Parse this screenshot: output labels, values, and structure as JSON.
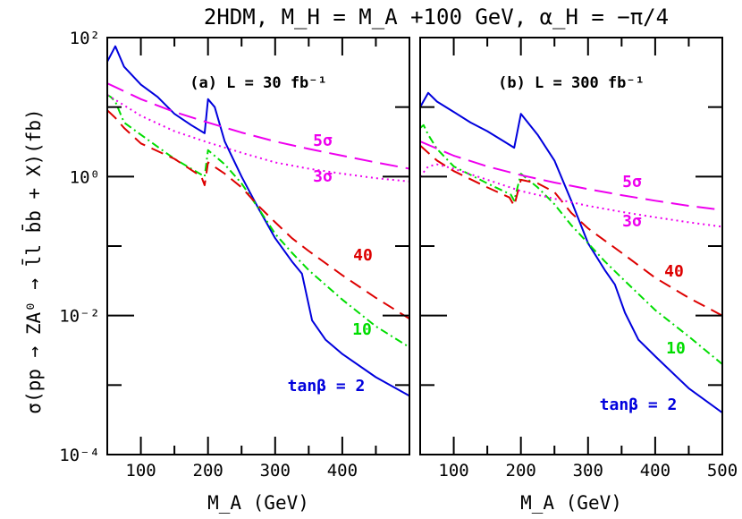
{
  "chart_data": {
    "title": "2HDM, M_H = M_A +100 GeV, α_H = −π/4",
    "ylabel": "σ(pp → ZA⁰ → l̄l b̄b + X)(fb)",
    "type": "line",
    "y_scale": "log",
    "ylim": [
      0.0001,
      100
    ],
    "y_tick_labels": [
      "10⁻⁴",
      "10⁻²",
      "10⁰",
      "10²"
    ],
    "colors": {
      "tanb2": "#0000dd",
      "tanb10": "#00dd00",
      "tanb40": "#dd0000",
      "sig": "#ee00ee"
    },
    "panels": [
      {
        "label": "(a) L = 30 fb⁻¹",
        "xlabel": "M_A (GeV)",
        "xlim": [
          50,
          500
        ],
        "x_tick_labels": [
          "100",
          "200",
          "300",
          "400"
        ],
        "series": [
          {
            "key": "tanb2",
            "label": "tanβ = 2",
            "style": "solid",
            "x": [
              50,
              62,
              75,
              100,
              125,
              150,
              175,
              195,
              200,
              210,
              225,
              250,
              275,
              300,
              325,
              340,
              355,
              375,
              400,
              450,
              500
            ],
            "y": [
              45,
              75,
              38,
              21,
              14,
              8,
              5.5,
              4.2,
              13,
              10,
              3.2,
              1.0,
              0.35,
              0.13,
              0.06,
              0.04,
              0.0085,
              0.0045,
              0.0028,
              0.0013,
              0.0007
            ]
          },
          {
            "key": "tanb10",
            "label": "10",
            "style": "dashdot",
            "x": [
              50,
              55,
              62,
              75,
              100,
              150,
              195,
              200,
              225,
              250,
              275,
              300,
              325,
              350,
              400,
              450,
              500
            ],
            "y": [
              15,
              14,
              12,
              6.0,
              4.0,
              1.8,
              1.0,
              2.4,
              1.5,
              0.8,
              0.35,
              0.15,
              0.08,
              0.045,
              0.017,
              0.007,
              0.0035
            ]
          },
          {
            "key": "tanb40",
            "label": "40",
            "style": "dashed",
            "x": [
              50,
              62,
              75,
              100,
              150,
              190,
              195,
              200,
              225,
              250,
              275,
              300,
              325,
              350,
              400,
              450,
              500
            ],
            "y": [
              9.0,
              7.0,
              5.0,
              3.0,
              1.8,
              1.0,
              0.75,
              1.6,
              1.1,
              0.7,
              0.38,
              0.22,
              0.13,
              0.085,
              0.038,
              0.018,
              0.009
            ]
          },
          {
            "key": "sig",
            "label": "5σ",
            "style": "longdash",
            "x": [
              50,
              100,
              150,
              200,
              250,
              300,
              350,
              400,
              450,
              500
            ],
            "y": [
              22,
              13,
              8.5,
              6.0,
              4.3,
              3.2,
              2.5,
              2.0,
              1.6,
              1.3
            ]
          },
          {
            "key": "sig",
            "label": "3σ",
            "style": "dotted",
            "x": [
              50,
              100,
              150,
              200,
              250,
              300,
              350,
              400,
              450,
              500
            ],
            "y": [
              15,
              7.5,
              4.5,
              3.1,
              2.2,
              1.6,
              1.3,
              1.1,
              0.95,
              0.85
            ]
          }
        ]
      },
      {
        "label": "(b) L = 300 fb⁻¹",
        "xlabel": "M_A (GeV)",
        "xlim": [
          50,
          500
        ],
        "x_tick_labels": [
          "100",
          "200",
          "300",
          "400",
          "500"
        ],
        "series": [
          {
            "key": "tanb2",
            "label": "tanβ = 2",
            "style": "solid",
            "x": [
              50,
              62,
              75,
              100,
              125,
              150,
              175,
              190,
              200,
              225,
              250,
              275,
              300,
              325,
              340,
              355,
              375,
              400,
              450,
              500
            ],
            "y": [
              10,
              16,
              12,
              8.5,
              6.0,
              4.5,
              3.2,
              2.6,
              8.0,
              4.0,
              1.7,
              0.45,
              0.11,
              0.045,
              0.028,
              0.011,
              0.0045,
              0.0026,
              0.0009,
              0.0004
            ]
          },
          {
            "key": "tanb10",
            "label": "10",
            "style": "dashdot",
            "x": [
              50,
              55,
              62,
              75,
              100,
              150,
              185,
              190,
              200,
              225,
              250,
              275,
              300,
              325,
              350,
              400,
              450,
              500
            ],
            "y": [
              5.0,
              5.5,
              4.0,
              2.5,
              1.4,
              0.8,
              0.55,
              0.45,
              1.1,
              0.7,
              0.4,
              0.2,
              0.11,
              0.06,
              0.035,
              0.012,
              0.005,
              0.002
            ]
          },
          {
            "key": "tanb40",
            "label": "40",
            "style": "dashed",
            "x": [
              50,
              62,
              75,
              100,
              150,
              183,
              190,
              200,
              225,
              250,
              275,
              300,
              325,
              350,
              400,
              450,
              500
            ],
            "y": [
              2.8,
              2.2,
              1.7,
              1.2,
              0.7,
              0.5,
              0.38,
              0.9,
              0.8,
              0.6,
              0.3,
              0.18,
              0.12,
              0.08,
              0.035,
              0.018,
              0.01
            ]
          },
          {
            "key": "sig",
            "label": "5σ",
            "style": "longdash",
            "x": [
              50,
              100,
              150,
              200,
              250,
              300,
              350,
              400,
              450,
              500
            ],
            "y": [
              3.2,
              2.0,
              1.4,
              1.05,
              0.82,
              0.66,
              0.54,
              0.45,
              0.38,
              0.33
            ]
          },
          {
            "key": "sig",
            "label": "3σ",
            "style": "dotted",
            "x": [
              50,
              62,
              75,
              100,
              150,
              200,
              250,
              300,
              350,
              400,
              450,
              500
            ],
            "y": [
              1.0,
              1.4,
              1.5,
              1.3,
              0.9,
              0.62,
              0.48,
              0.38,
              0.31,
              0.26,
              0.22,
              0.19
            ]
          }
        ]
      }
    ]
  }
}
